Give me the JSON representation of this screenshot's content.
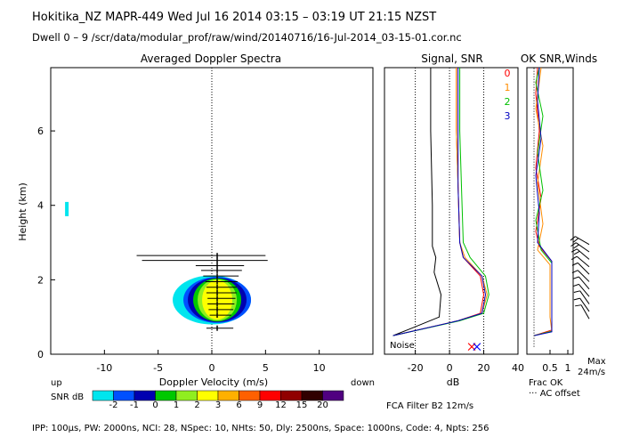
{
  "header": {
    "line1": "Hokitika_NZ  MAPR-449  Wed Jul 16 2014 03:15 – 03:19 UT 21:15 NZST",
    "line2": "Dwell  0 – 9   /scr/data/modular_prof/raw/wind/20140716/16-Jul-2014_03-15-01.cor.nc"
  },
  "footer": {
    "params": "IPP: 100μs,  PW: 2000ns,  NCI: 28,  NSpec: 10, NHts: 50,  Dly: 2500ns,  Space: 1000ns,  Code: 4,  Npts: 256",
    "filter": "FCA Filter B2 12m/s"
  },
  "colorbar": {
    "up_label": "up",
    "down_label": "down",
    "title": "SNR dB",
    "ticks": [
      "-2",
      "-1",
      "0",
      "1",
      "2",
      "3",
      "6",
      "9",
      "12",
      "15",
      "20"
    ],
    "colors": [
      "#00e5ee",
      "#0050ff",
      "#0000b0",
      "#00c800",
      "#90ee20",
      "#ffff00",
      "#ffb000",
      "#ff6000",
      "#ff0000",
      "#900000",
      "#300000",
      "#500080"
    ]
  },
  "chart_data": [
    {
      "type": "heatmap",
      "title": "Averaged Doppler Spectra",
      "xlabel": "Doppler Velocity (m/s)",
      "ylabel": "Height (km)",
      "xlim": [
        -15,
        15
      ],
      "ylim": [
        0,
        7.7
      ],
      "xticks": [
        "-10",
        "-5",
        "0",
        "5",
        "10"
      ],
      "yticks": [
        "0",
        "2",
        "4",
        "6"
      ],
      "echo_core": {
        "velocity": 0.5,
        "height_range": [
          0.7,
          2.6
        ],
        "peak_snr_db": 3
      },
      "isolated_echo": {
        "velocity": -13.5,
        "height": 3.9
      },
      "spectral_width_bars": [
        {
          "height": 2.65,
          "vmin": -7.0,
          "vmax": 5.0
        },
        {
          "height": 2.52,
          "vmin": -6.5,
          "vmax": 5.2
        },
        {
          "height": 2.38,
          "vmin": -1.5,
          "vmax": 3.0
        },
        {
          "height": 2.25,
          "vmin": -1.0,
          "vmax": 2.8
        },
        {
          "height": 2.1,
          "vmin": -0.8,
          "vmax": 2.5
        },
        {
          "height": 1.95,
          "vmin": -0.6,
          "vmax": 2.4
        },
        {
          "height": 1.8,
          "vmin": -0.5,
          "vmax": 2.3
        },
        {
          "height": 1.65,
          "vmin": -0.5,
          "vmax": 2.3
        },
        {
          "height": 1.5,
          "vmin": -0.4,
          "vmax": 2.2
        },
        {
          "height": 1.35,
          "vmin": -0.4,
          "vmax": 2.1
        },
        {
          "height": 1.2,
          "vmin": -0.3,
          "vmax": 2.0
        },
        {
          "height": 1.05,
          "vmin": -0.2,
          "vmax": 1.8
        },
        {
          "height": 0.7,
          "vmin": -0.5,
          "vmax": 2.0
        }
      ]
    },
    {
      "type": "line",
      "title": "Signal, SNR",
      "xlabel": "dB",
      "xlim": [
        -38,
        40
      ],
      "ylim": [
        0,
        7.7
      ],
      "xticks": [
        "-20",
        "0",
        "20",
        "40"
      ],
      "noise_label": "Noise",
      "noise_markers": [
        {
          "x": 13,
          "color": "#ff0000"
        },
        {
          "x": 16,
          "color": "#0000ff"
        }
      ],
      "series": [
        {
          "name": "noise",
          "color": "#000000",
          "points": [
            [
              -33,
              0.5
            ],
            [
              -22,
              0.7
            ],
            [
              -6,
              1.0
            ],
            [
              -5,
              1.6
            ],
            [
              -9,
              2.2
            ],
            [
              -8,
              2.6
            ],
            [
              -10,
              2.9
            ],
            [
              -10,
              4.0
            ],
            [
              -11,
              6.0
            ],
            [
              -11,
              7.7
            ]
          ]
        },
        {
          "name": "0",
          "color": "#ff0000",
          "points": [
            [
              -33,
              0.5
            ],
            [
              5,
              0.9
            ],
            [
              18,
              1.1
            ],
            [
              20,
              1.6
            ],
            [
              18,
              2.1
            ],
            [
              8,
              2.6
            ],
            [
              6,
              3.0
            ],
            [
              5,
              4.5
            ],
            [
              4,
              6.0
            ],
            [
              4,
              7.7
            ]
          ]
        },
        {
          "name": "1",
          "color": "#ff8c00",
          "points": [
            [
              -33,
              0.5
            ],
            [
              5,
              0.9
            ],
            [
              19,
              1.1
            ],
            [
              22,
              1.6
            ],
            [
              19,
              2.1
            ],
            [
              9,
              2.6
            ],
            [
              6,
              3.0
            ],
            [
              5,
              4.5
            ],
            [
              4,
              6.0
            ],
            [
              4,
              7.7
            ]
          ]
        },
        {
          "name": "2",
          "color": "#00c000",
          "points": [
            [
              -33,
              0.5
            ],
            [
              6,
              0.9
            ],
            [
              20,
              1.1
            ],
            [
              23,
              1.6
            ],
            [
              21,
              2.1
            ],
            [
              12,
              2.6
            ],
            [
              8,
              3.0
            ],
            [
              7,
              4.5
            ],
            [
              6,
              6.0
            ],
            [
              6,
              7.7
            ]
          ]
        },
        {
          "name": "3",
          "color": "#0000c0",
          "points": [
            [
              -33,
              0.5
            ],
            [
              5,
              0.9
            ],
            [
              19,
              1.1
            ],
            [
              21,
              1.6
            ],
            [
              19,
              2.1
            ],
            [
              8,
              2.6
            ],
            [
              6,
              3.0
            ],
            [
              5,
              4.5
            ],
            [
              5,
              6.0
            ],
            [
              5,
              7.7
            ]
          ]
        }
      ]
    },
    {
      "type": "line",
      "title": "OK SNR,Winds",
      "xlim": [
        0,
        1
      ],
      "ylim": [
        0,
        7.7
      ],
      "xticks": [
        "0.5",
        "1"
      ],
      "legend": [
        {
          "label": "0",
          "color": "#ff0000"
        },
        {
          "label": "1",
          "color": "#ff8c00"
        },
        {
          "label": "2",
          "color": "#00c000"
        },
        {
          "label": "3",
          "color": "#0000c0"
        }
      ],
      "labels": {
        "frac_ok": "Frac OK",
        "ac_offset": "··· AC offset",
        "max_label": "Max",
        "max_value": "24m/s"
      },
      "series": [
        {
          "name": "0",
          "color": "#ff0000",
          "points": [
            [
              0.05,
              0.5
            ],
            [
              0.55,
              0.65
            ],
            [
              0.55,
              1.0
            ],
            [
              0.55,
              2.5
            ],
            [
              0.2,
              2.9
            ],
            [
              0.1,
              3.3
            ],
            [
              0.25,
              4.2
            ],
            [
              0.1,
              5.0
            ],
            [
              0.2,
              6.0
            ],
            [
              0.1,
              7.0
            ],
            [
              0.15,
              7.7
            ]
          ]
        },
        {
          "name": "1",
          "color": "#ff8c00",
          "points": [
            [
              0.05,
              0.5
            ],
            [
              0.55,
              0.62
            ],
            [
              0.5,
              1.0
            ],
            [
              0.5,
              2.4
            ],
            [
              0.15,
              2.8
            ],
            [
              0.3,
              3.5
            ],
            [
              0.15,
              4.6
            ],
            [
              0.3,
              5.6
            ],
            [
              0.1,
              6.6
            ],
            [
              0.25,
              7.7
            ]
          ]
        },
        {
          "name": "2",
          "color": "#00c000",
          "points": [
            [
              0.05,
              0.5
            ],
            [
              0.55,
              0.62
            ],
            [
              0.55,
              1.0
            ],
            [
              0.55,
              2.45
            ],
            [
              0.25,
              2.8
            ],
            [
              0.1,
              3.6
            ],
            [
              0.3,
              4.4
            ],
            [
              0.15,
              5.4
            ],
            [
              0.3,
              6.4
            ],
            [
              0.1,
              7.3
            ],
            [
              0.2,
              7.7
            ]
          ]
        },
        {
          "name": "3",
          "color": "#0000c0",
          "points": [
            [
              0.05,
              0.5
            ],
            [
              0.55,
              0.6
            ],
            [
              0.55,
              1.0
            ],
            [
              0.55,
              2.5
            ],
            [
              0.15,
              3.0
            ],
            [
              0.2,
              3.8
            ],
            [
              0.1,
              4.8
            ],
            [
              0.25,
              5.8
            ],
            [
              0.15,
              6.8
            ],
            [
              0.2,
              7.7
            ]
          ]
        },
        {
          "name": "ac_offset",
          "color": "#000000",
          "dotted": true,
          "points": [
            [
              0.05,
              0.2
            ],
            [
              0.05,
              7.7
            ]
          ]
        }
      ],
      "wind_barbs": [
        {
          "height": 2.95,
          "speed_ms": 20,
          "dir_deg": 300
        },
        {
          "height": 2.75,
          "speed_ms": 18,
          "dir_deg": 305
        },
        {
          "height": 2.55,
          "speed_ms": 15,
          "dir_deg": 310
        },
        {
          "height": 2.35,
          "speed_ms": 12,
          "dir_deg": 310
        },
        {
          "height": 2.15,
          "speed_ms": 10,
          "dir_deg": 315
        },
        {
          "height": 1.95,
          "speed_ms": 10,
          "dir_deg": 315
        },
        {
          "height": 1.75,
          "speed_ms": 10,
          "dir_deg": 320
        },
        {
          "height": 1.55,
          "speed_ms": 10,
          "dir_deg": 320
        },
        {
          "height": 1.35,
          "speed_ms": 8,
          "dir_deg": 325
        },
        {
          "height": 1.15,
          "speed_ms": 8,
          "dir_deg": 325
        },
        {
          "height": 0.95,
          "speed_ms": 6,
          "dir_deg": 330
        }
      ]
    }
  ]
}
